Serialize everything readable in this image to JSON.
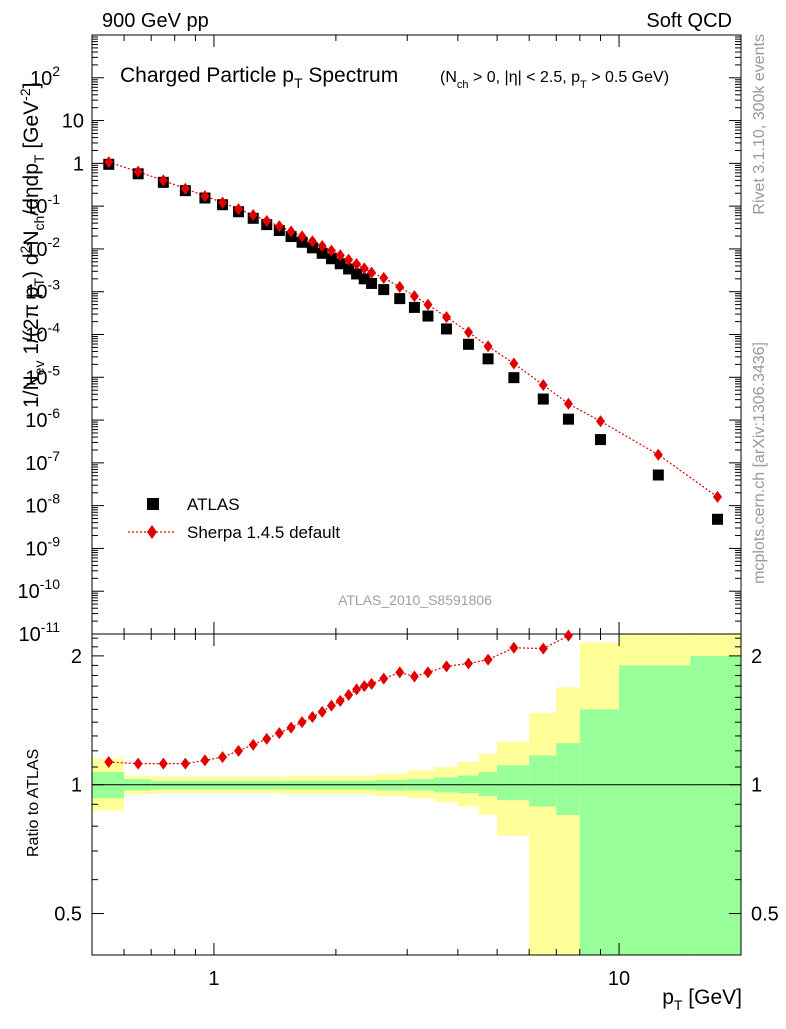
{
  "header": {
    "left": "900 GeV pp",
    "right": "Soft QCD"
  },
  "side_labels": {
    "rivet": "Rivet 3.1.10,  300k events",
    "mcplots": "mcplots.cern.ch [arXiv:1306.3436]"
  },
  "chart_data": {
    "type": "scatter",
    "title_main": "Charged Particle p",
    "title_main_sub": "T",
    "title_main_tail": " Spectrum",
    "title_cuts": {
      "p1": "(N",
      "s1": "ch",
      "p2": " > 0, |η| < 2.5, p",
      "s2": "T",
      "p3": " > 0.5 GeV)"
    },
    "analysis_id": "ATLAS_2010_S8591806",
    "ylabel_parts": {
      "a": "1/N",
      "a_sub": "ev",
      "b": "  1/(2π p",
      "b_sub": "T",
      "c": ")  d",
      "c_sup": "2",
      "d": "N",
      "d_sub": "ch",
      "e": "/dηdp",
      "e_sub": "T",
      "f": " [GeV",
      "f_sup": "-2",
      "g": "]"
    },
    "xlabel": {
      "main": "p",
      "sub": "T",
      "tail": " [GeV]"
    },
    "ratio_ylabel": "Ratio to ATLAS",
    "x_scale": "log",
    "y_scale": "log",
    "xlim": [
      0.5,
      20
    ],
    "ylim": [
      1e-11,
      1000
    ],
    "ratio_ylim": [
      0.4,
      2.25
    ],
    "x_ticks": [
      {
        "value": 1,
        "label": "1"
      },
      {
        "value": 10,
        "label": "10"
      }
    ],
    "y_tick_labels": [
      {
        "exp": -11,
        "label": "10",
        "sup": "-11"
      },
      {
        "exp": -10,
        "label": "10",
        "sup": "-10"
      },
      {
        "exp": -9,
        "label": "10",
        "sup": "-9"
      },
      {
        "exp": -8,
        "label": "10",
        "sup": "-8"
      },
      {
        "exp": -7,
        "label": "10",
        "sup": "-7"
      },
      {
        "exp": -6,
        "label": "10",
        "sup": "-6"
      },
      {
        "exp": -5,
        "label": "10",
        "sup": "-5"
      },
      {
        "exp": -4,
        "label": "10",
        "sup": "-4"
      },
      {
        "exp": -3,
        "label": "10",
        "sup": "-3"
      },
      {
        "exp": -2,
        "label": "10",
        "sup": "-2"
      },
      {
        "exp": -1,
        "label": "10",
        "sup": "-1"
      },
      {
        "exp": 0,
        "label": "1",
        "sup": ""
      },
      {
        "exp": 1,
        "label": "10",
        "sup": ""
      },
      {
        "exp": 2,
        "label": "10",
        "sup": "2"
      }
    ],
    "ratio_ticks": [
      {
        "value": 0.5,
        "label": "0.5"
      },
      {
        "value": 1,
        "label": "1"
      },
      {
        "value": 2,
        "label": "2"
      }
    ],
    "legend_position": "bottom-left",
    "colors": {
      "atlas": "#000000",
      "sherpa": "#e00000",
      "band_inner": "#99ff99",
      "band_outer": "#ffff99"
    },
    "series": [
      {
        "name": "ATLAS",
        "marker": "square",
        "points": [
          [
            0.55,
            0.95
          ],
          [
            0.65,
            0.57
          ],
          [
            0.75,
            0.36
          ],
          [
            0.85,
            0.23
          ],
          [
            0.95,
            0.155
          ],
          [
            1.05,
            0.108
          ],
          [
            1.15,
            0.074
          ],
          [
            1.25,
            0.052
          ],
          [
            1.35,
            0.037
          ],
          [
            1.45,
            0.027
          ],
          [
            1.55,
            0.0195
          ],
          [
            1.65,
            0.0143
          ],
          [
            1.75,
            0.0106
          ],
          [
            1.85,
            0.0079
          ],
          [
            1.95,
            0.0059
          ],
          [
            2.05,
            0.0045
          ],
          [
            2.15,
            0.0034
          ],
          [
            2.25,
            0.0026
          ],
          [
            2.35,
            0.002
          ],
          [
            2.45,
            0.00156
          ],
          [
            2.625,
            0.00112
          ],
          [
            2.875,
            0.00069
          ],
          [
            3.125,
            0.00043
          ],
          [
            3.375,
            0.00027
          ],
          [
            3.75,
            0.000135
          ],
          [
            4.25,
            5.9e-05
          ],
          [
            4.75,
            2.7e-05
          ],
          [
            5.5,
            9.8e-06
          ],
          [
            6.5,
            3.1e-06
          ],
          [
            7.5,
            1.05e-06
          ],
          [
            9.0,
            3.5e-07
          ],
          [
            12.5,
            5.2e-08
          ],
          [
            17.5,
            4.8e-09
          ]
        ]
      },
      {
        "name": "Sherpa 1.4.5 default",
        "marker": "diamond",
        "points": [
          [
            0.55,
            1.07
          ],
          [
            0.65,
            0.64
          ],
          [
            0.75,
            0.4
          ],
          [
            0.85,
            0.255
          ],
          [
            0.95,
            0.172
          ],
          [
            1.05,
            0.121
          ],
          [
            1.15,
            0.085
          ],
          [
            1.25,
            0.062
          ],
          [
            1.35,
            0.045
          ],
          [
            1.45,
            0.034
          ],
          [
            1.55,
            0.0256
          ],
          [
            1.65,
            0.0196
          ],
          [
            1.75,
            0.0151
          ],
          [
            1.85,
            0.0117
          ],
          [
            1.95,
            0.0091
          ],
          [
            2.05,
            0.0071
          ],
          [
            2.15,
            0.0056
          ],
          [
            2.25,
            0.0044
          ],
          [
            2.35,
            0.0035
          ],
          [
            2.45,
            0.0028
          ],
          [
            2.625,
            0.0021
          ],
          [
            2.875,
            0.00129
          ],
          [
            3.125,
            0.00079
          ],
          [
            3.375,
            0.0005
          ],
          [
            3.75,
            0.000255
          ],
          [
            4.25,
            0.000113
          ],
          [
            4.75,
            5.3e-05
          ],
          [
            5.5,
            2.1e-05
          ],
          [
            6.5,
            6.6e-06
          ],
          [
            7.5,
            2.4e-06
          ],
          [
            9.0,
            9.4e-07
          ],
          [
            12.5,
            1.55e-07
          ],
          [
            17.5,
            1.6e-08
          ]
        ]
      }
    ],
    "ratio_points": [
      [
        0.55,
        1.13
      ],
      [
        0.65,
        1.12
      ],
      [
        0.75,
        1.12
      ],
      [
        0.85,
        1.12
      ],
      [
        0.95,
        1.14
      ],
      [
        1.05,
        1.16
      ],
      [
        1.15,
        1.2
      ],
      [
        1.25,
        1.24
      ],
      [
        1.35,
        1.28
      ],
      [
        1.45,
        1.32
      ],
      [
        1.55,
        1.36
      ],
      [
        1.65,
        1.4
      ],
      [
        1.75,
        1.44
      ],
      [
        1.85,
        1.48
      ],
      [
        1.95,
        1.53
      ],
      [
        2.05,
        1.57
      ],
      [
        2.15,
        1.62
      ],
      [
        2.25,
        1.67
      ],
      [
        2.35,
        1.7
      ],
      [
        2.45,
        1.72
      ],
      [
        2.625,
        1.77
      ],
      [
        2.875,
        1.83
      ],
      [
        3.125,
        1.79
      ],
      [
        3.375,
        1.83
      ],
      [
        3.75,
        1.89
      ],
      [
        4.25,
        1.92
      ],
      [
        4.75,
        1.96
      ],
      [
        5.5,
        2.09
      ],
      [
        6.5,
        2.08
      ],
      [
        7.5,
        2.23
      ]
    ],
    "ratio_bands": [
      {
        "x0": 0.5,
        "x1": 0.6,
        "inner": [
          0.93,
          1.07
        ],
        "outer": [
          0.87,
          1.15
        ]
      },
      {
        "x0": 0.6,
        "x1": 0.7,
        "inner": [
          0.97,
          1.03
        ],
        "outer": [
          0.95,
          1.05
        ]
      },
      {
        "x0": 0.7,
        "x1": 1.5,
        "inner": [
          0.975,
          1.02
        ],
        "outer": [
          0.955,
          1.045
        ]
      },
      {
        "x0": 1.5,
        "x1": 2.5,
        "inner": [
          0.975,
          1.02
        ],
        "outer": [
          0.95,
          1.05
        ]
      },
      {
        "x0": 2.5,
        "x1": 3.0,
        "inner": [
          0.97,
          1.025
        ],
        "outer": [
          0.94,
          1.06
        ]
      },
      {
        "x0": 3.0,
        "x1": 3.5,
        "inner": [
          0.97,
          1.03
        ],
        "outer": [
          0.93,
          1.08
        ]
      },
      {
        "x0": 3.5,
        "x1": 4.0,
        "inner": [
          0.96,
          1.04
        ],
        "outer": [
          0.91,
          1.1
        ]
      },
      {
        "x0": 4.0,
        "x1": 4.5,
        "inner": [
          0.955,
          1.05
        ],
        "outer": [
          0.89,
          1.13
        ]
      },
      {
        "x0": 4.5,
        "x1": 5.0,
        "inner": [
          0.94,
          1.07
        ],
        "outer": [
          0.85,
          1.18
        ]
      },
      {
        "x0": 5.0,
        "x1": 6.0,
        "inner": [
          0.92,
          1.11
        ],
        "outer": [
          0.76,
          1.26
        ]
      },
      {
        "x0": 6.0,
        "x1": 7.0,
        "inner": [
          0.89,
          1.17
        ],
        "outer": [
          0.4,
          1.47
        ]
      },
      {
        "x0": 7.0,
        "x1": 8.0,
        "inner": [
          0.85,
          1.25
        ],
        "outer": [
          0.4,
          1.69
        ]
      },
      {
        "x0": 8.0,
        "x1": 10.0,
        "inner": [
          0.4,
          1.5
        ],
        "outer": [
          0.4,
          2.15
        ]
      },
      {
        "x0": 10.0,
        "x1": 15.0,
        "inner": [
          0.4,
          1.9
        ],
        "outer": [
          0.4,
          2.25
        ]
      },
      {
        "x0": 15.0,
        "x1": 20.0,
        "inner": [
          0.4,
          2.0
        ],
        "outer": [
          0.4,
          2.25
        ]
      }
    ]
  }
}
